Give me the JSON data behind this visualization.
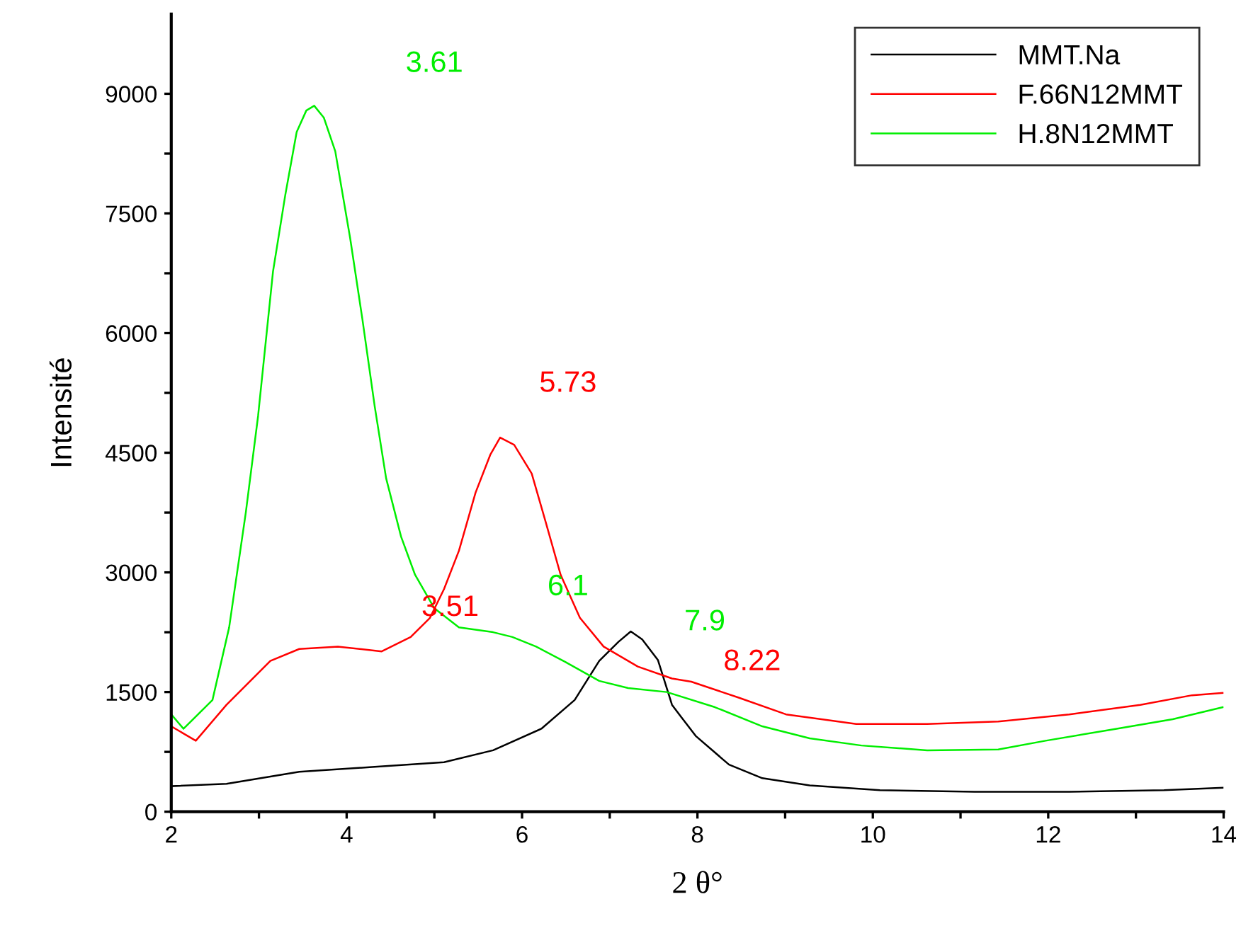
{
  "chart_data": {
    "type": "line",
    "xlabel": "2 θ°",
    "ylabel": "Intensité",
    "xlim": [
      2,
      14
    ],
    "ylim": [
      0,
      10000
    ],
    "xticks": [
      2,
      {
        "value": 3,
        "label": null
      },
      4,
      {
        "value": 5,
        "label": null
      },
      6,
      {
        "value": 7,
        "label": null
      },
      8,
      {
        "value": 9,
        "label": null
      },
      10,
      {
        "value": 11,
        "label": null
      },
      12,
      {
        "value": 13,
        "label": null
      },
      14
    ],
    "yticks": [
      0,
      {
        "value": 750,
        "label": null
      },
      1500,
      {
        "value": 2250,
        "label": null
      },
      3000,
      {
        "value": 3750,
        "label": null
      },
      4500,
      {
        "value": 5250,
        "label": null
      },
      6000,
      {
        "value": 6750,
        "label": null
      },
      7500,
      {
        "value": 8250,
        "label": null
      },
      9000
    ],
    "grid": false,
    "legend": "top right",
    "marker": "none",
    "line_style": "solid",
    "series": [
      {
        "name": "MMT.Na",
        "color": "#000000",
        "x": [
          2.0,
          2.63,
          3.46,
          4.29,
          5.11,
          5.67,
          6.22,
          6.6,
          6.88,
          7.1,
          7.24,
          7.37,
          7.55,
          7.71,
          7.82,
          7.98,
          8.36,
          8.74,
          9.28,
          10.08,
          11.16,
          12.24,
          13.32,
          13.99
        ],
        "values": [
          320,
          350,
          500,
          560,
          620,
          770,
          1040,
          1400,
          1890,
          2130,
          2260,
          2160,
          1900,
          1340,
          1180,
          950,
          590,
          420,
          330,
          270,
          250,
          250,
          270,
          300
        ]
      },
      {
        "name": "F.66N12MMT",
        "color": "#ff0000",
        "x": [
          2.0,
          2.28,
          2.63,
          3.13,
          3.46,
          3.9,
          4.4,
          4.73,
          4.95,
          5.11,
          5.28,
          5.47,
          5.64,
          5.75,
          5.91,
          6.11,
          6.27,
          6.44,
          6.66,
          6.93,
          7.32,
          7.71,
          7.93,
          8.47,
          9.01,
          9.81,
          10.62,
          11.43,
          12.24,
          13.05,
          13.64,
          13.99
        ],
        "values": [
          1070,
          890,
          1340,
          1890,
          2040,
          2070,
          2010,
          2190,
          2430,
          2790,
          3270,
          4000,
          4480,
          4690,
          4600,
          4240,
          3630,
          2970,
          2430,
          2070,
          1820,
          1670,
          1630,
          1430,
          1220,
          1100,
          1100,
          1130,
          1220,
          1340,
          1460,
          1490
        ]
      },
      {
        "name": "H.8N12MMT",
        "color": "#00ee00",
        "x": [
          2.0,
          2.14,
          2.47,
          2.66,
          2.85,
          2.99,
          3.16,
          3.3,
          3.43,
          3.54,
          3.63,
          3.74,
          3.87,
          4.04,
          4.18,
          4.32,
          4.45,
          4.62,
          4.78,
          5.0,
          5.28,
          5.67,
          5.89,
          6.16,
          6.49,
          6.88,
          7.21,
          7.65,
          8.2,
          8.74,
          9.28,
          9.87,
          10.62,
          11.43,
          11.97,
          12.78,
          13.42,
          13.99
        ],
        "values": [
          1220,
          1040,
          1400,
          2310,
          3750,
          4960,
          6770,
          7730,
          8520,
          8790,
          8850,
          8700,
          8280,
          7190,
          6170,
          5080,
          4180,
          3450,
          2970,
          2550,
          2310,
          2250,
          2190,
          2070,
          1880,
          1640,
          1550,
          1500,
          1310,
          1070,
          920,
          830,
          770,
          780,
          890,
          1040,
          1160,
          1310
        ]
      }
    ],
    "annotations": [
      "3.61",
      "5.73",
      "3.51",
      "6.1",
      "7.9",
      "8.22"
    ]
  }
}
